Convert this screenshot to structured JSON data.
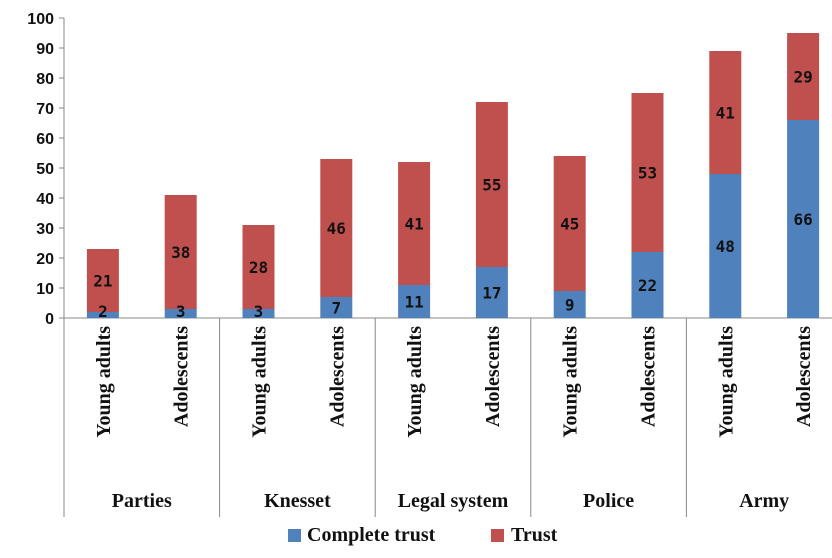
{
  "chart_data": {
    "type": "bar",
    "stacked": true,
    "groups": [
      "Parties",
      "Knesset",
      "Legal system",
      "Police",
      "Army"
    ],
    "subcategories": [
      "Young adults",
      "Adolescents"
    ],
    "categories": [
      "Young adults",
      "Adolescents",
      "Young adults",
      "Adolescents",
      "Young adults",
      "Adolescents",
      "Young adults",
      "Adolescents",
      "Young adults",
      "Adolescents"
    ],
    "series": [
      {
        "name": "Complete trust",
        "color": "#4f81bd",
        "values": [
          2,
          3,
          3,
          7,
          11,
          17,
          9,
          22,
          48,
          66
        ],
        "labels": [
          "2",
          "3",
          "3",
          "7",
          "11",
          "17",
          "9",
          "22",
          "48",
          "66"
        ]
      },
      {
        "name": "Trust",
        "color": "#c0504d",
        "values": [
          21,
          38,
          28,
          46,
          41,
          55,
          45,
          53,
          41,
          29
        ],
        "labels": [
          "21",
          "38",
          "28",
          "46",
          "41",
          "55",
          "45",
          "53",
          "41",
          "29"
        ]
      }
    ],
    "ylim": [
      0,
      100
    ],
    "yticks": [
      0,
      10,
      20,
      30,
      40,
      50,
      60,
      70,
      80,
      90,
      100
    ],
    "ytick_labels": [
      "0",
      "10",
      "20",
      "30",
      "40",
      "50",
      "60",
      "70",
      "80",
      "90",
      "100"
    ],
    "title": "",
    "xlabel": "",
    "ylabel": "",
    "grid": false,
    "legend_position": "bottom"
  }
}
